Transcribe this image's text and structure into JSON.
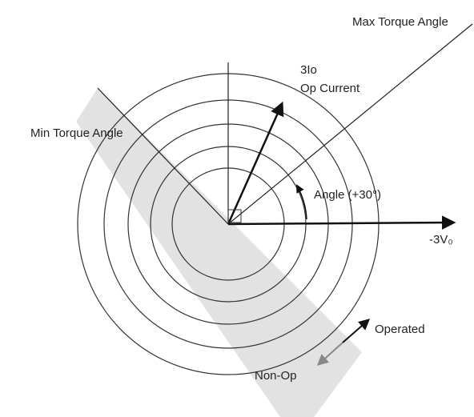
{
  "labels": {
    "max_torque": "Max Torque Angle",
    "current_top": "3Io",
    "current_bottom": "Op Current",
    "min_torque": "Min Torque Angle",
    "angle": "Angle (+30°)",
    "voltage": "-3V₀",
    "operated": "Operated",
    "non_op": "Non-Op"
  }
}
